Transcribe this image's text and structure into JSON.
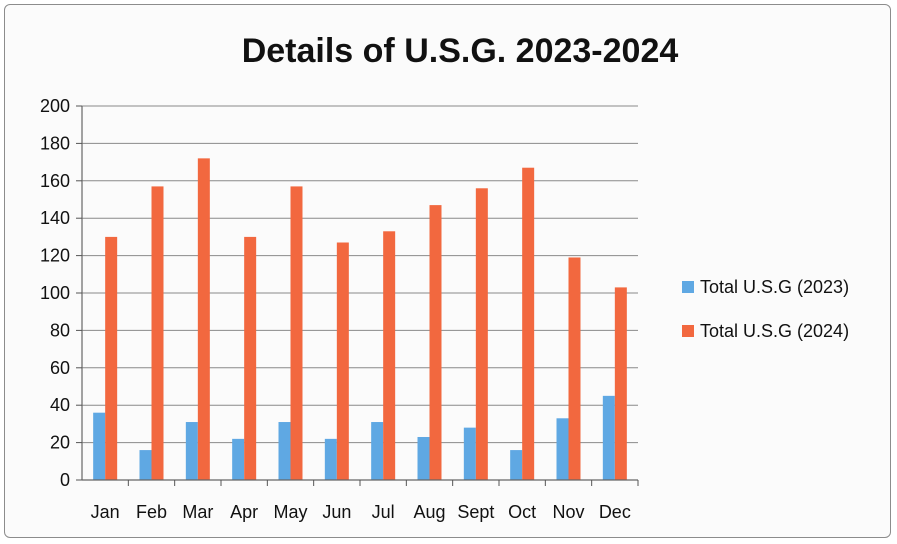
{
  "chart_data": {
    "type": "bar",
    "title": "Details of U.S.G. 2023-2024",
    "categories": [
      "Jan",
      "Feb",
      "Mar",
      "Apr",
      "May",
      "Jun",
      "Jul",
      "Aug",
      "Sept",
      "Oct",
      "Nov",
      "Dec"
    ],
    "series": [
      {
        "name": "Total U.S.G (2023)",
        "color": "#5fa8e3",
        "values": [
          36,
          16,
          31,
          22,
          31,
          22,
          31,
          23,
          28,
          16,
          33,
          45
        ]
      },
      {
        "name": "Total U.S.G (2024)",
        "color": "#f2683f",
        "values": [
          130,
          157,
          172,
          130,
          157,
          127,
          133,
          147,
          156,
          167,
          119,
          103
        ]
      }
    ],
    "ylim": [
      0,
      200
    ],
    "yticks": [
      "0",
      "20",
      "40",
      "60",
      "80",
      "100",
      "120",
      "140",
      "160",
      "180",
      "200"
    ],
    "grid": true,
    "legend_position": "right"
  }
}
